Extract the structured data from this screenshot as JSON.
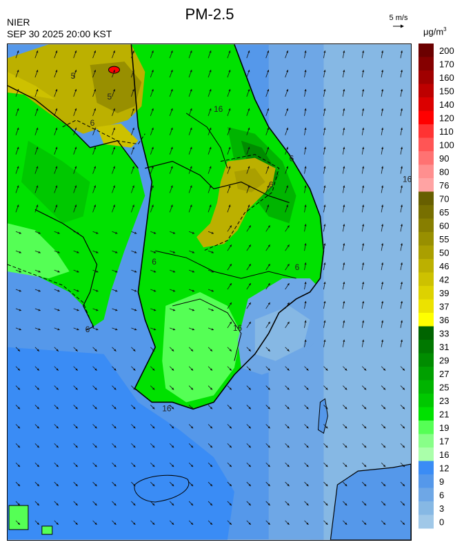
{
  "header": {
    "title": "PM-2.5",
    "agency": "NIER",
    "datetime": "SEP 30 2025 20:00 KST",
    "wind_reference": "5 m/s",
    "unit_base": "μg/m",
    "unit_exp": "3"
  },
  "legend": {
    "levels": [
      {
        "label": "200",
        "color": "#6b0000"
      },
      {
        "label": "170",
        "color": "#850000"
      },
      {
        "label": "160",
        "color": "#a00000"
      },
      {
        "label": "150",
        "color": "#bd0000"
      },
      {
        "label": "140",
        "color": "#db0000"
      },
      {
        "label": "120",
        "color": "#ff0000"
      },
      {
        "label": "110",
        "color": "#ff3333"
      },
      {
        "label": "100",
        "color": "#ff5555"
      },
      {
        "label": "90",
        "color": "#ff7272"
      },
      {
        "label": "80",
        "color": "#ff8f8f"
      },
      {
        "label": "76",
        "color": "#ffa3a3"
      },
      {
        "label": "70",
        "color": "#675f00"
      },
      {
        "label": "65",
        "color": "#776f00"
      },
      {
        "label": "60",
        "color": "#877e00"
      },
      {
        "label": "55",
        "color": "#988f00"
      },
      {
        "label": "50",
        "color": "#aa9f00"
      },
      {
        "label": "46",
        "color": "#bcb000"
      },
      {
        "label": "42",
        "color": "#cdc100"
      },
      {
        "label": "39",
        "color": "#ddd200"
      },
      {
        "label": "37",
        "color": "#ece200"
      },
      {
        "label": "36",
        "color": "#ffff00"
      },
      {
        "label": "33",
        "color": "#006400"
      },
      {
        "label": "31",
        "color": "#007800"
      },
      {
        "label": "29",
        "color": "#008c00"
      },
      {
        "label": "27",
        "color": "#00a000"
      },
      {
        "label": "25",
        "color": "#00b400"
      },
      {
        "label": "23",
        "color": "#00c800"
      },
      {
        "label": "21",
        "color": "#00e100"
      },
      {
        "label": "19",
        "color": "#55ff55"
      },
      {
        "label": "17",
        "color": "#88ff88"
      },
      {
        "label": "16",
        "color": "#aaffaa"
      },
      {
        "label": "12",
        "color": "#3a8cf5"
      },
      {
        "label": "9",
        "color": "#5598ea"
      },
      {
        "label": "6",
        "color": "#6ea7e6"
      },
      {
        "label": "3",
        "color": "#86b8e4"
      },
      {
        "label": "0",
        "color": "#a0c8e8"
      }
    ]
  },
  "map": {
    "contour_labels": [
      "5",
      "5",
      "6",
      "6",
      "6",
      "6",
      "6",
      "6",
      "16",
      "16",
      "16",
      "16"
    ]
  }
}
